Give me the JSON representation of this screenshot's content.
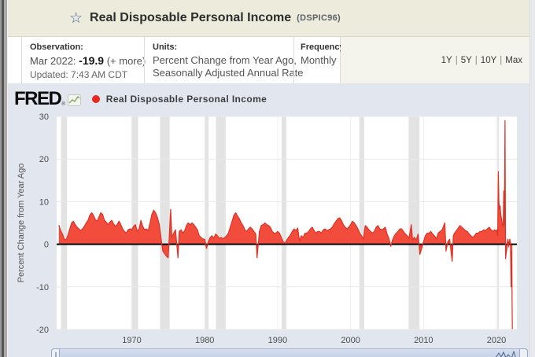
{
  "page": {
    "title": "Real Disposable Personal Income",
    "series_code": "(DSPIC96)"
  },
  "info": {
    "observation": {
      "label": "Observation:",
      "date": "Mar 2022:",
      "value": "-19.9",
      "more": "(+ more)",
      "updated": "Updated: 7:43 AM CDT"
    },
    "units": {
      "label": "Units:",
      "line1": "Percent Change from Year Ago,",
      "line2": "Seasonally Adjusted Annual Rate"
    },
    "frequency": {
      "label": "Frequency:",
      "value": "Monthly"
    },
    "range_separator": "|",
    "ranges": [
      {
        "label": "1Y"
      },
      {
        "label": "5Y"
      },
      {
        "label": "10Y"
      },
      {
        "label": "Max"
      }
    ]
  },
  "chart": {
    "brand": "FRED",
    "reg": "®",
    "legend_label": "Real Disposable Personal Income",
    "colors": {
      "chart_bg": "#e2e7ef",
      "plot_bg": "#ffffff",
      "recession": "#e3e3e3",
      "grid": "#e9e9e9",
      "grid_v": "#f0f0f0",
      "zero_line": "#000000",
      "area_fill": "#f14c3c",
      "area_stroke": "#dd3226",
      "legend_dot": "#e8271d",
      "tick": "#4c4c4c"
    }
  },
  "chart_data": {
    "type": "area",
    "title": "Real Disposable Personal Income",
    "xlabel": "",
    "ylabel": "Percent Change from Year Ago",
    "ylim": [
      -20,
      30
    ],
    "xlim": [
      1959.7,
      2022.8
    ],
    "y_ticks": [
      30,
      20,
      10,
      0,
      -10,
      -20
    ],
    "x_ticks": [
      1970,
      1980,
      1990,
      2000,
      2010,
      2020
    ],
    "grid": true,
    "legend_position": "top-left",
    "latest_observation": {
      "date": "Mar 2022",
      "value": -19.9
    },
    "recessions": [
      [
        1960.29,
        1961.12
      ],
      [
        1969.92,
        1970.87
      ],
      [
        1973.87,
        1975.2
      ],
      [
        1980.0,
        1980.54
      ],
      [
        1981.54,
        1982.87
      ],
      [
        1990.54,
        1991.2
      ],
      [
        2001.2,
        2001.87
      ],
      [
        2007.96,
        2009.45
      ],
      [
        2020.12,
        2020.29
      ]
    ],
    "series": [
      {
        "name": "Real Disposable Personal Income",
        "points": [
          [
            1960.0,
            4.5
          ],
          [
            1960.25,
            3.2
          ],
          [
            1960.5,
            2.4
          ],
          [
            1960.75,
            1.2
          ],
          [
            1961.0,
            1.0
          ],
          [
            1961.25,
            2.2
          ],
          [
            1961.5,
            3.6
          ],
          [
            1961.75,
            5.0
          ],
          [
            1962.0,
            5.4
          ],
          [
            1962.25,
            4.6
          ],
          [
            1962.5,
            4.0
          ],
          [
            1962.75,
            3.6
          ],
          [
            1963.0,
            3.2
          ],
          [
            1963.25,
            3.6
          ],
          [
            1963.5,
            4.2
          ],
          [
            1963.75,
            5.0
          ],
          [
            1964.0,
            5.6
          ],
          [
            1964.25,
            6.8
          ],
          [
            1964.5,
            7.4
          ],
          [
            1964.75,
            6.8
          ],
          [
            1965.0,
            5.8
          ],
          [
            1965.25,
            5.4
          ],
          [
            1965.5,
            6.4
          ],
          [
            1965.75,
            7.4
          ],
          [
            1966.0,
            7.0
          ],
          [
            1966.25,
            5.6
          ],
          [
            1966.5,
            5.2
          ],
          [
            1966.75,
            4.6
          ],
          [
            1967.0,
            5.2
          ],
          [
            1967.25,
            5.6
          ],
          [
            1967.5,
            4.8
          ],
          [
            1967.75,
            4.2
          ],
          [
            1968.0,
            4.6
          ],
          [
            1968.25,
            5.4
          ],
          [
            1968.5,
            4.6
          ],
          [
            1968.75,
            3.6
          ],
          [
            1969.0,
            3.0
          ],
          [
            1969.25,
            2.6
          ],
          [
            1969.5,
            3.4
          ],
          [
            1969.75,
            3.6
          ],
          [
            1970.0,
            3.4
          ],
          [
            1970.25,
            4.2
          ],
          [
            1970.5,
            4.6
          ],
          [
            1970.75,
            3.0
          ],
          [
            1971.0,
            3.6
          ],
          [
            1971.25,
            5.6
          ],
          [
            1971.5,
            4.2
          ],
          [
            1971.75,
            3.4
          ],
          [
            1972.0,
            3.6
          ],
          [
            1972.25,
            3.2
          ],
          [
            1972.5,
            5.0
          ],
          [
            1972.75,
            7.0
          ],
          [
            1973.0,
            8.0
          ],
          [
            1973.25,
            7.4
          ],
          [
            1973.5,
            6.4
          ],
          [
            1973.75,
            4.8
          ],
          [
            1974.0,
            1.6
          ],
          [
            1974.25,
            -1.6
          ],
          [
            1974.5,
            -2.2
          ],
          [
            1974.75,
            -2.8
          ],
          [
            1975.0,
            -3.2
          ],
          [
            1975.33,
            8.2
          ],
          [
            1975.5,
            1.6
          ],
          [
            1975.75,
            2.6
          ],
          [
            1976.0,
            3.4
          ],
          [
            1976.33,
            -3.2
          ],
          [
            1976.5,
            3.0
          ],
          [
            1976.75,
            3.4
          ],
          [
            1977.0,
            2.6
          ],
          [
            1977.25,
            3.2
          ],
          [
            1977.5,
            4.4
          ],
          [
            1977.75,
            5.0
          ],
          [
            1978.0,
            4.6
          ],
          [
            1978.25,
            5.0
          ],
          [
            1978.5,
            4.6
          ],
          [
            1978.75,
            4.0
          ],
          [
            1979.0,
            3.4
          ],
          [
            1979.25,
            2.0
          ],
          [
            1979.5,
            1.6
          ],
          [
            1979.75,
            1.2
          ],
          [
            1980.0,
            1.2
          ],
          [
            1980.25,
            -1.0
          ],
          [
            1980.5,
            0.6
          ],
          [
            1980.75,
            1.6
          ],
          [
            1981.0,
            2.0
          ],
          [
            1981.25,
            1.4
          ],
          [
            1981.5,
            2.4
          ],
          [
            1981.75,
            2.0
          ],
          [
            1982.0,
            1.4
          ],
          [
            1982.25,
            1.6
          ],
          [
            1982.5,
            1.2
          ],
          [
            1982.75,
            1.6
          ],
          [
            1983.0,
            2.0
          ],
          [
            1983.25,
            2.6
          ],
          [
            1983.5,
            4.0
          ],
          [
            1983.75,
            5.4
          ],
          [
            1984.0,
            6.8
          ],
          [
            1984.25,
            7.4
          ],
          [
            1984.5,
            6.6
          ],
          [
            1984.75,
            6.0
          ],
          [
            1985.0,
            5.0
          ],
          [
            1985.25,
            4.4
          ],
          [
            1985.5,
            3.4
          ],
          [
            1985.75,
            3.0
          ],
          [
            1986.0,
            3.6
          ],
          [
            1986.25,
            4.0
          ],
          [
            1986.5,
            3.6
          ],
          [
            1986.75,
            3.0
          ],
          [
            1987.0,
            2.4
          ],
          [
            1987.17,
            -3.2
          ],
          [
            1987.5,
            3.0
          ],
          [
            1987.75,
            4.4
          ],
          [
            1988.0,
            4.6
          ],
          [
            1988.25,
            5.0
          ],
          [
            1988.5,
            4.6
          ],
          [
            1988.75,
            4.4
          ],
          [
            1989.0,
            4.0
          ],
          [
            1989.25,
            3.0
          ],
          [
            1989.5,
            2.6
          ],
          [
            1989.75,
            2.6
          ],
          [
            1990.0,
            3.0
          ],
          [
            1990.25,
            2.6
          ],
          [
            1990.5,
            1.6
          ],
          [
            1990.75,
            0.6
          ],
          [
            1991.0,
            0.2
          ],
          [
            1991.25,
            1.0
          ],
          [
            1991.5,
            1.6
          ],
          [
            1991.75,
            2.2
          ],
          [
            1992.0,
            3.0
          ],
          [
            1992.25,
            3.6
          ],
          [
            1992.5,
            3.2
          ],
          [
            1992.75,
            3.8
          ],
          [
            1993.0,
            0.8
          ],
          [
            1993.25,
            2.0
          ],
          [
            1993.5,
            1.6
          ],
          [
            1993.75,
            2.6
          ],
          [
            1994.0,
            2.6
          ],
          [
            1994.25,
            3.0
          ],
          [
            1994.5,
            3.6
          ],
          [
            1994.75,
            4.0
          ],
          [
            1995.0,
            3.2
          ],
          [
            1995.25,
            2.6
          ],
          [
            1995.5,
            3.0
          ],
          [
            1995.75,
            3.0
          ],
          [
            1996.0,
            2.6
          ],
          [
            1996.25,
            3.4
          ],
          [
            1996.5,
            3.6
          ],
          [
            1996.75,
            3.2
          ],
          [
            1997.0,
            3.4
          ],
          [
            1997.25,
            3.6
          ],
          [
            1997.5,
            4.0
          ],
          [
            1997.75,
            4.8
          ],
          [
            1998.0,
            5.4
          ],
          [
            1998.25,
            6.0
          ],
          [
            1998.5,
            6.2
          ],
          [
            1998.75,
            5.6
          ],
          [
            1999.0,
            4.6
          ],
          [
            1999.25,
            4.0
          ],
          [
            1999.5,
            3.6
          ],
          [
            1999.75,
            4.0
          ],
          [
            2000.0,
            4.6
          ],
          [
            2000.25,
            5.4
          ],
          [
            2000.5,
            5.0
          ],
          [
            2000.75,
            4.4
          ],
          [
            2001.0,
            3.6
          ],
          [
            2001.25,
            2.6
          ],
          [
            2001.5,
            2.0
          ],
          [
            2001.75,
            1.2
          ],
          [
            2002.0,
            4.4
          ],
          [
            2002.25,
            4.0
          ],
          [
            2002.5,
            3.4
          ],
          [
            2002.75,
            3.0
          ],
          [
            2003.0,
            2.6
          ],
          [
            2003.25,
            3.0
          ],
          [
            2003.5,
            4.0
          ],
          [
            2003.75,
            4.4
          ],
          [
            2004.0,
            3.6
          ],
          [
            2004.25,
            3.4
          ],
          [
            2004.5,
            3.6
          ],
          [
            2004.75,
            4.0
          ],
          [
            2005.0,
            2.4
          ],
          [
            2005.25,
            1.4
          ],
          [
            2005.5,
            -0.5
          ],
          [
            2005.75,
            1.0
          ],
          [
            2006.0,
            2.0
          ],
          [
            2006.25,
            2.6
          ],
          [
            2006.5,
            3.0
          ],
          [
            2006.75,
            3.6
          ],
          [
            2007.0,
            3.6
          ],
          [
            2007.25,
            3.0
          ],
          [
            2007.5,
            2.4
          ],
          [
            2007.75,
            2.0
          ],
          [
            2008.0,
            1.4
          ],
          [
            2008.33,
            4.6
          ],
          [
            2008.5,
            1.0
          ],
          [
            2008.75,
            1.6
          ],
          [
            2009.0,
            1.0
          ],
          [
            2009.25,
            2.4
          ],
          [
            2009.5,
            -2.4
          ],
          [
            2009.75,
            -1.0
          ],
          [
            2010.0,
            0.6
          ],
          [
            2010.25,
            2.0
          ],
          [
            2010.5,
            2.6
          ],
          [
            2010.75,
            2.6
          ],
          [
            2011.0,
            3.0
          ],
          [
            2011.25,
            2.4
          ],
          [
            2011.5,
            2.0
          ],
          [
            2011.75,
            1.2
          ],
          [
            2012.0,
            2.6
          ],
          [
            2012.25,
            3.0
          ],
          [
            2012.5,
            3.2
          ],
          [
            2012.92,
            5.0
          ],
          [
            2013.08,
            -1.6
          ],
          [
            2013.33,
            0.6
          ],
          [
            2013.58,
            1.2
          ],
          [
            2013.92,
            -4.0
          ],
          [
            2014.08,
            2.0
          ],
          [
            2014.25,
            2.6
          ],
          [
            2014.5,
            3.2
          ],
          [
            2014.75,
            3.8
          ],
          [
            2015.0,
            4.4
          ],
          [
            2015.25,
            4.0
          ],
          [
            2015.5,
            3.6
          ],
          [
            2015.75,
            3.2
          ],
          [
            2016.0,
            3.0
          ],
          [
            2016.25,
            2.4
          ],
          [
            2016.5,
            2.0
          ],
          [
            2016.75,
            1.6
          ],
          [
            2017.0,
            2.0
          ],
          [
            2017.25,
            2.6
          ],
          [
            2017.5,
            2.6
          ],
          [
            2017.75,
            3.0
          ],
          [
            2018.0,
            3.0
          ],
          [
            2018.25,
            3.4
          ],
          [
            2018.5,
            3.2
          ],
          [
            2018.75,
            3.6
          ],
          [
            2019.0,
            4.0
          ],
          [
            2019.25,
            3.4
          ],
          [
            2019.5,
            3.0
          ],
          [
            2019.75,
            3.4
          ],
          [
            2020.0,
            3.0
          ],
          [
            2020.08,
            3.4
          ],
          [
            2020.17,
            2.0
          ],
          [
            2020.25,
            17.0
          ],
          [
            2020.33,
            10.0
          ],
          [
            2020.42,
            8.2
          ],
          [
            2020.5,
            9.0
          ],
          [
            2020.58,
            7.0
          ],
          [
            2020.67,
            6.2
          ],
          [
            2020.75,
            5.4
          ],
          [
            2020.83,
            4.2
          ],
          [
            2020.92,
            4.6
          ],
          [
            2021.0,
            12.5
          ],
          [
            2021.08,
            4.5
          ],
          [
            2021.17,
            29.0
          ],
          [
            2021.25,
            -3.4
          ],
          [
            2021.33,
            -2.0
          ],
          [
            2021.42,
            -1.2
          ],
          [
            2021.5,
            0.6
          ],
          [
            2021.58,
            1.2
          ],
          [
            2021.67,
            -0.6
          ],
          [
            2021.75,
            0.6
          ],
          [
            2021.83,
            1.2
          ],
          [
            2021.92,
            0.4
          ],
          [
            2022.0,
            -10.0
          ],
          [
            2022.08,
            -1.6
          ],
          [
            2022.17,
            -19.9
          ]
        ]
      }
    ]
  }
}
